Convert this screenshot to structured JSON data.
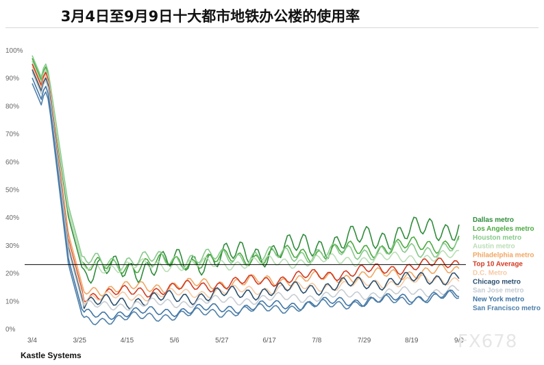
{
  "chart_data": {
    "type": "line",
    "title": "3月4日至9月9日十大都市地铁办公楼的使用率",
    "source": "Kastle Systems",
    "x_ticks": [
      "3/4",
      "3/25",
      "4/15",
      "5/6",
      "5/27",
      "6/17",
      "7/8",
      "7/29",
      "8/19",
      "9/9"
    ],
    "y_ticks": [
      "0%",
      "10%",
      "20%",
      "30%",
      "40%",
      "50%",
      "60%",
      "70%",
      "80%",
      "90%",
      "100%"
    ],
    "ylim": [
      0,
      100
    ],
    "reference_value": 23,
    "legend_position": "right",
    "grid": false,
    "series": [
      {
        "name": "Dallas metro",
        "color": "#2e8b3a",
        "start": 96,
        "floor": 20,
        "end": 37,
        "amp": 6.5
      },
      {
        "name": "Los Angeles metro",
        "color": "#49aa3e",
        "start": 97,
        "floor": 22,
        "end": 31,
        "amp": 4
      },
      {
        "name": "Houston metro",
        "color": "#86c98a",
        "start": 98,
        "floor": 24,
        "end": 29,
        "amp": 4
      },
      {
        "name": "Austin metro",
        "color": "#b9deb6",
        "start": 96,
        "floor": 22,
        "end": 26,
        "amp": 3
      },
      {
        "name": "Philadelphia metro",
        "color": "#f0a662",
        "start": 95,
        "floor": 14,
        "end": 21,
        "amp": 3
      },
      {
        "name": "Top 10 Average",
        "color": "#d23a22",
        "start": 95,
        "floor": 12,
        "end": 24,
        "amp": 3
      },
      {
        "name": "D.C. Metro",
        "color": "#f6c9a4",
        "start": 94,
        "floor": 11,
        "end": 18,
        "amp": 2.5
      },
      {
        "name": "Chicago metro",
        "color": "#2a4f6e",
        "start": 93,
        "floor": 9,
        "end": 19,
        "amp": 3.5
      },
      {
        "name": "San Jose metro",
        "color": "#c6cdd3",
        "start": 92,
        "floor": 8,
        "end": 14,
        "amp": 2.5
      },
      {
        "name": "New York metro",
        "color": "#3f75a5",
        "start": 90,
        "floor": 5,
        "end": 12,
        "amp": 2.5
      },
      {
        "name": "San Francisco metro",
        "color": "#4e7fa9",
        "start": 88,
        "floor": 3,
        "end": 12,
        "amp": 2.5
      }
    ],
    "watermark": "FX678"
  }
}
